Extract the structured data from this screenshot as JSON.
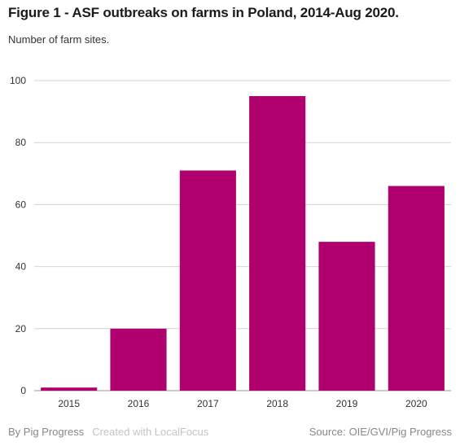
{
  "chart_data": {
    "type": "bar",
    "title": "Figure 1 - ASF outbreaks on farms in Poland, 2014-Aug 2020.",
    "subtitle": "Number of farm sites.",
    "categories": [
      "2015",
      "2016",
      "2017",
      "2018",
      "2019",
      "2020"
    ],
    "values": [
      1,
      20,
      71,
      95,
      48,
      66
    ],
    "ylim": [
      0,
      100
    ],
    "yticks": [
      0,
      20,
      40,
      60,
      80,
      100
    ],
    "grid": true,
    "bar_color": "#b0006e",
    "grid_color": "#d4d4d4"
  },
  "footer": {
    "credit": "By Pig Progress",
    "created": "Created with LocalFocus",
    "source_label": "Source:",
    "source": "OIE/GVI/Pig Progress"
  }
}
